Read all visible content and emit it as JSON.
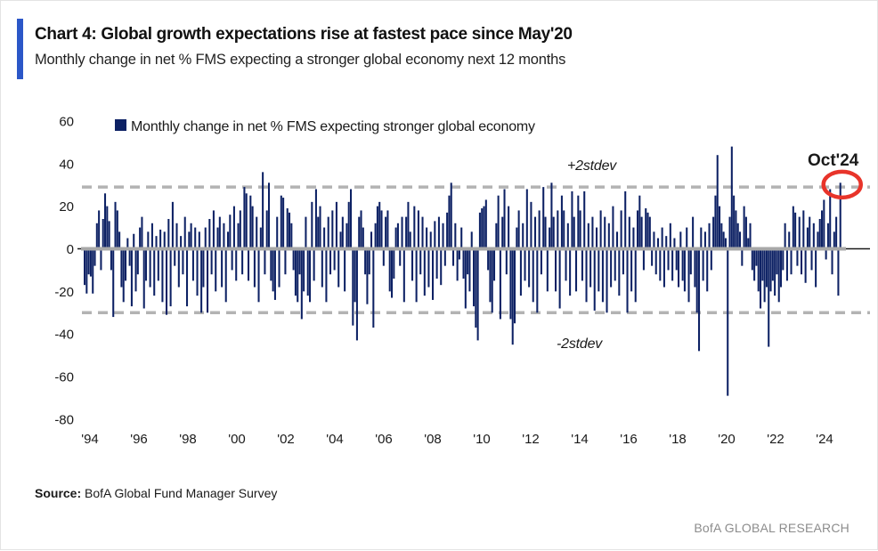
{
  "header": {
    "title": "Chart 4: Global growth expectations rise at fastest pace since May'20",
    "subtitle": "Monthly change in net % FMS expecting a stronger global economy next 12 months"
  },
  "colors": {
    "accent_blue": "#2b57c8",
    "bar_navy": "#0d2164",
    "dashed_gray": "#b3b3b3",
    "zero_line_gray": "#a8a8a8",
    "annotation_red": "#e8342a",
    "brand_gray": "#8c8c8c"
  },
  "chart_data": {
    "type": "bar",
    "legend_label": "Monthly change in net % FMS expecting stronger global economy",
    "frequency": "monthly",
    "x_start": "1994-01",
    "x_end": "2024-10",
    "x_tick_labels": [
      "'94",
      "'96",
      "'98",
      "'00",
      "'02",
      "'04",
      "'06",
      "'08",
      "'10",
      "'12",
      "'14",
      "'16",
      "'18",
      "'20",
      "'22",
      "'24"
    ],
    "y_ticks": [
      60,
      40,
      20,
      0,
      -20,
      -40,
      -60,
      -80
    ],
    "ylim": [
      -80,
      60
    ],
    "grid": "off",
    "bands": {
      "upper": {
        "label": "+2stdev",
        "value": 29
      },
      "lower": {
        "label": "-2stdev",
        "value": -30
      }
    },
    "annotation": {
      "label": "Oct'24",
      "value": 31
    },
    "values": [
      -17,
      -21,
      -12,
      -13,
      -21,
      -8,
      12,
      18,
      -10,
      14,
      26,
      20,
      13,
      -10,
      -32,
      22,
      18,
      8,
      -18,
      -25,
      -15,
      5,
      -8,
      -27,
      7,
      -20,
      -12,
      10,
      15,
      -28,
      -15,
      8,
      -18,
      12,
      -22,
      6,
      -15,
      9,
      -25,
      8,
      -31,
      14,
      -27,
      22,
      -8,
      12,
      -18,
      6,
      -12,
      15,
      -27,
      8,
      12,
      -15,
      10,
      -22,
      8,
      -30,
      -18,
      10,
      -30,
      14,
      -12,
      18,
      -20,
      10,
      15,
      -18,
      12,
      -25,
      8,
      16,
      -10,
      20,
      -15,
      12,
      18,
      -12,
      29,
      26,
      -15,
      25,
      20,
      -18,
      15,
      -25,
      10,
      36,
      -12,
      18,
      31,
      -15,
      -20,
      -24,
      15,
      -18,
      25,
      24,
      -12,
      19,
      17,
      12,
      -10,
      -22,
      -25,
      -12,
      -33,
      -20,
      15,
      -22,
      -25,
      22,
      -15,
      28,
      15,
      20,
      -18,
      10,
      -25,
      15,
      -12,
      18,
      -10,
      22,
      -18,
      8,
      15,
      -20,
      12,
      22,
      28,
      -36,
      -25,
      -43,
      15,
      18,
      10,
      -12,
      -26,
      -12,
      8,
      -37,
      12,
      20,
      22,
      18,
      -8,
      15,
      18,
      -20,
      -23,
      -14,
      10,
      12,
      -8,
      15,
      -25,
      15,
      22,
      8,
      -15,
      20,
      -25,
      18,
      -12,
      15,
      -22,
      10,
      -18,
      8,
      -24,
      13,
      -14,
      15,
      -17,
      12,
      -8,
      17,
      25,
      31,
      -8,
      12,
      -15,
      -5,
      10,
      -14,
      -28,
      -12,
      -20,
      8,
      -27,
      -37,
      -43,
      17,
      19,
      20,
      23,
      -10,
      -25,
      -30,
      -15,
      12,
      25,
      -33,
      15,
      28,
      -12,
      20,
      -33,
      -45,
      -35,
      10,
      18,
      -22,
      12,
      -15,
      28,
      -18,
      22,
      -25,
      15,
      -30,
      18,
      -12,
      29,
      15,
      -20,
      10,
      31,
      15,
      -20,
      18,
      -28,
      25,
      18,
      -15,
      12,
      -22,
      27,
      15,
      -20,
      25,
      18,
      -15,
      27,
      -25,
      12,
      -18,
      15,
      -29,
      10,
      -20,
      18,
      -25,
      15,
      -30,
      12,
      -18,
      20,
      -15,
      8,
      -22,
      18,
      -12,
      27,
      -30,
      15,
      -20,
      10,
      -25,
      18,
      25,
      15,
      -10,
      19,
      17,
      15,
      -8,
      8,
      -12,
      5,
      -15,
      10,
      -18,
      6,
      -10,
      12,
      -15,
      5,
      -10,
      -18,
      8,
      -15,
      -20,
      10,
      -25,
      -12,
      15,
      -18,
      -30,
      -48,
      10,
      -15,
      8,
      -20,
      12,
      -10,
      15,
      25,
      44,
      20,
      12,
      8,
      5,
      -69,
      15,
      48,
      25,
      18,
      12,
      8,
      -8,
      20,
      15,
      5,
      12,
      -10,
      -15,
      -8,
      -20,
      -28,
      -15,
      -25,
      -18,
      -46,
      -20,
      -15,
      -22,
      -12,
      -25,
      -18,
      -10,
      12,
      -15,
      8,
      -12,
      20,
      17,
      -8,
      15,
      -12,
      18,
      -16,
      10,
      15,
      -10,
      12,
      -18,
      8,
      14,
      18,
      23,
      -5,
      12,
      28,
      -12,
      8,
      15,
      -22,
      31
    ]
  },
  "footer": {
    "source_label": "Source:",
    "source_text": " BofA Global Fund Manager Survey",
    "brand": "BofA GLOBAL RESEARCH"
  }
}
